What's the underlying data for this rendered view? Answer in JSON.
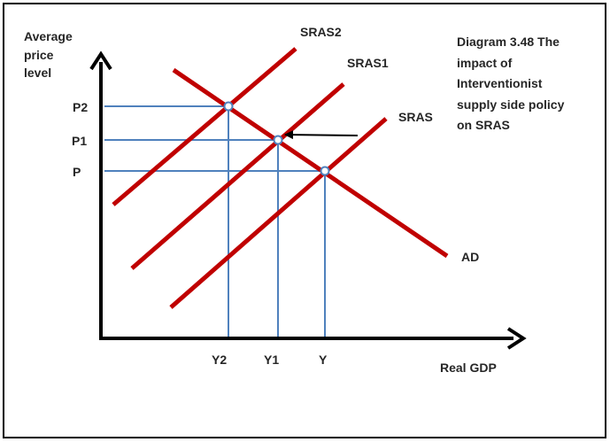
{
  "diagram": {
    "title_lines": [
      "Diagram 3.48 The",
      "impact of",
      "Interventionist",
      "supply side policy",
      "on SRAS"
    ],
    "y_axis_label": [
      "Average",
      "price",
      "level"
    ],
    "x_axis_label": "Real GDP",
    "price_labels": [
      "P2",
      "P1",
      "P"
    ],
    "output_labels": [
      "Y2",
      "Y1",
      "Y"
    ],
    "curve_labels": {
      "sras2": "SRAS2",
      "sras1": "SRAS1",
      "sras": "SRAS",
      "ad": "AD"
    },
    "colors": {
      "curve": "#c00000",
      "guide": "#4f81bd",
      "axis": "#000000",
      "border": "#000000"
    }
  }
}
